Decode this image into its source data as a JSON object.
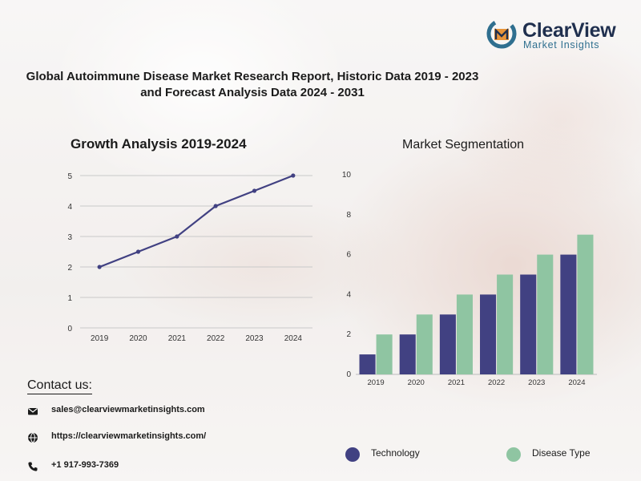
{
  "brand": {
    "name": "ClearView",
    "subtitle": "Market Insights",
    "colors": {
      "navy": "#1f2f4e",
      "teal": "#2f6f8f",
      "orange": "#e8953a"
    }
  },
  "report_title": "Global Autoimmune Disease Market Research Report, Historic Data 2019 - 2023 and Forecast Analysis Data 2024 - 2031",
  "contact": {
    "heading": "Contact us:",
    "email": "sales@clearviewmarketinsights.com",
    "website": "https://clearviewmarketinsights.com/",
    "phone": "+1 917-993-7369",
    "icons": [
      "envelope-icon",
      "globe-icon",
      "phone-icon"
    ]
  },
  "chart_data": [
    {
      "type": "line",
      "title": "Growth Analysis 2019-2024",
      "x": [
        "2019",
        "2020",
        "2021",
        "2022",
        "2023",
        "2024"
      ],
      "series": [
        {
          "values": [
            2,
            2.5,
            3,
            4,
            4.5,
            5
          ]
        }
      ],
      "ylim": [
        0,
        5
      ],
      "yticks": [
        "0",
        "1",
        "2",
        "3",
        "4",
        "5"
      ],
      "grid": true,
      "color": "#414182"
    },
    {
      "type": "bar",
      "title": "Market Segmentation",
      "categories": [
        "2019",
        "2020",
        "2021",
        "2022",
        "2023",
        "2024"
      ],
      "series": [
        {
          "name": "Technology",
          "values": [
            1,
            2,
            3,
            4,
            5,
            6
          ],
          "color": "#414182"
        },
        {
          "name": "Disease Type",
          "values": [
            2,
            3,
            4,
            5,
            6,
            7
          ],
          "color": "#8fc5a2"
        }
      ],
      "ylim": [
        0,
        10
      ],
      "yticks": [
        "0",
        "2",
        "4",
        "6",
        "8",
        "10"
      ],
      "grid": false,
      "legend": "bottom"
    }
  ]
}
